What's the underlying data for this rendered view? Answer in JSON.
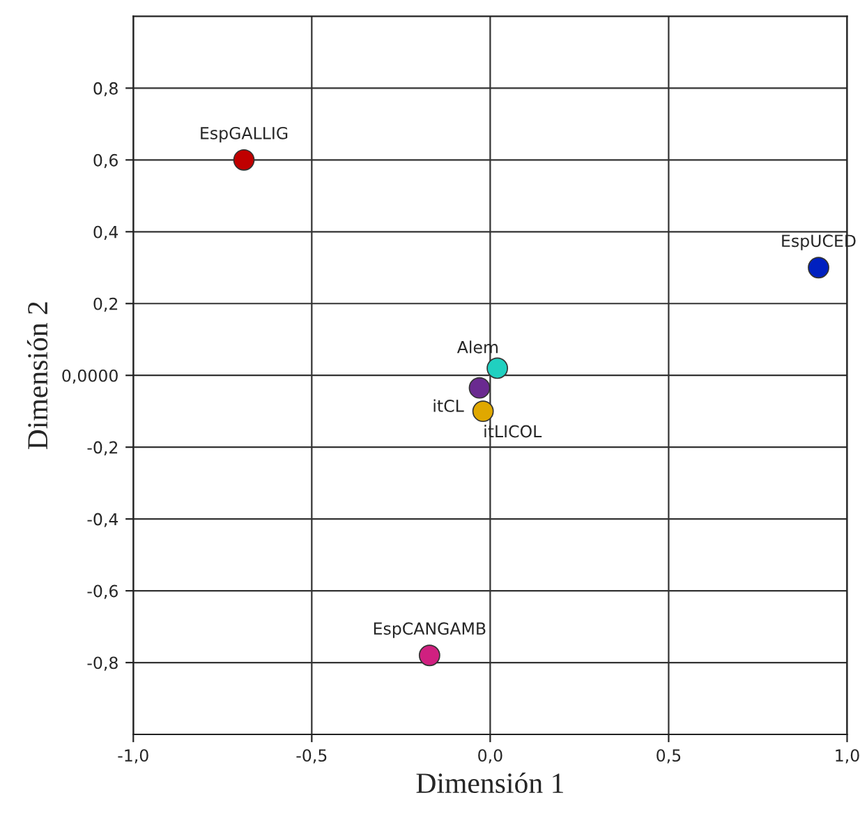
{
  "chart_data": {
    "type": "scatter",
    "xlabel": "Dimensión 1",
    "ylabel": "Dimensión 2",
    "x": [
      -0.69,
      0.92,
      0.02,
      -0.03,
      -0.02,
      -0.17
    ],
    "values": [
      0.6,
      0.3,
      0.02,
      -0.035,
      -0.1,
      -0.78
    ],
    "colors": [
      "#c00000",
      "#0020c0",
      "#20d0c0",
      "#6a2a90",
      "#e0a800",
      "#d02080"
    ],
    "annotations": [
      {
        "text": "EspGALLIG",
        "x": -0.69,
        "y": 0.6
      },
      {
        "text": "EspUCED",
        "x": 0.92,
        "y": 0.3
      },
      {
        "text": "Alem",
        "x": 0.02,
        "y": 0.02
      },
      {
        "text": "itCL",
        "x": -0.03,
        "y": -0.035
      },
      {
        "text": "itLICOL",
        "x": -0.02,
        "y": -0.1
      },
      {
        "text": "EspCANGAMB",
        "x": -0.17,
        "y": -0.78
      }
    ],
    "xlim": [
      -1.0,
      1.0
    ],
    "ylim": [
      -1.0,
      1.0
    ],
    "xticks": [
      {
        "value": -1.0,
        "label": "-1,0"
      },
      {
        "value": -0.5,
        "label": "-0,5"
      },
      {
        "value": 0.0,
        "label": "0,0"
      },
      {
        "value": 0.5,
        "label": "0,5"
      },
      {
        "value": 1.0,
        "label": "1,0"
      }
    ],
    "yticks": [
      {
        "value": -0.8,
        "label": "-0,8"
      },
      {
        "value": -0.6,
        "label": "-0,6"
      },
      {
        "value": -0.4,
        "label": "-0,4"
      },
      {
        "value": -0.2,
        "label": "-0,2"
      },
      {
        "value": 0.0,
        "label": "0,0000"
      },
      {
        "value": 0.2,
        "label": "0,2"
      },
      {
        "value": 0.4,
        "label": "0,4"
      },
      {
        "value": 0.6,
        "label": "0,6"
      },
      {
        "value": 0.8,
        "label": "0,8"
      }
    ],
    "grid": true,
    "marker": "circle"
  }
}
